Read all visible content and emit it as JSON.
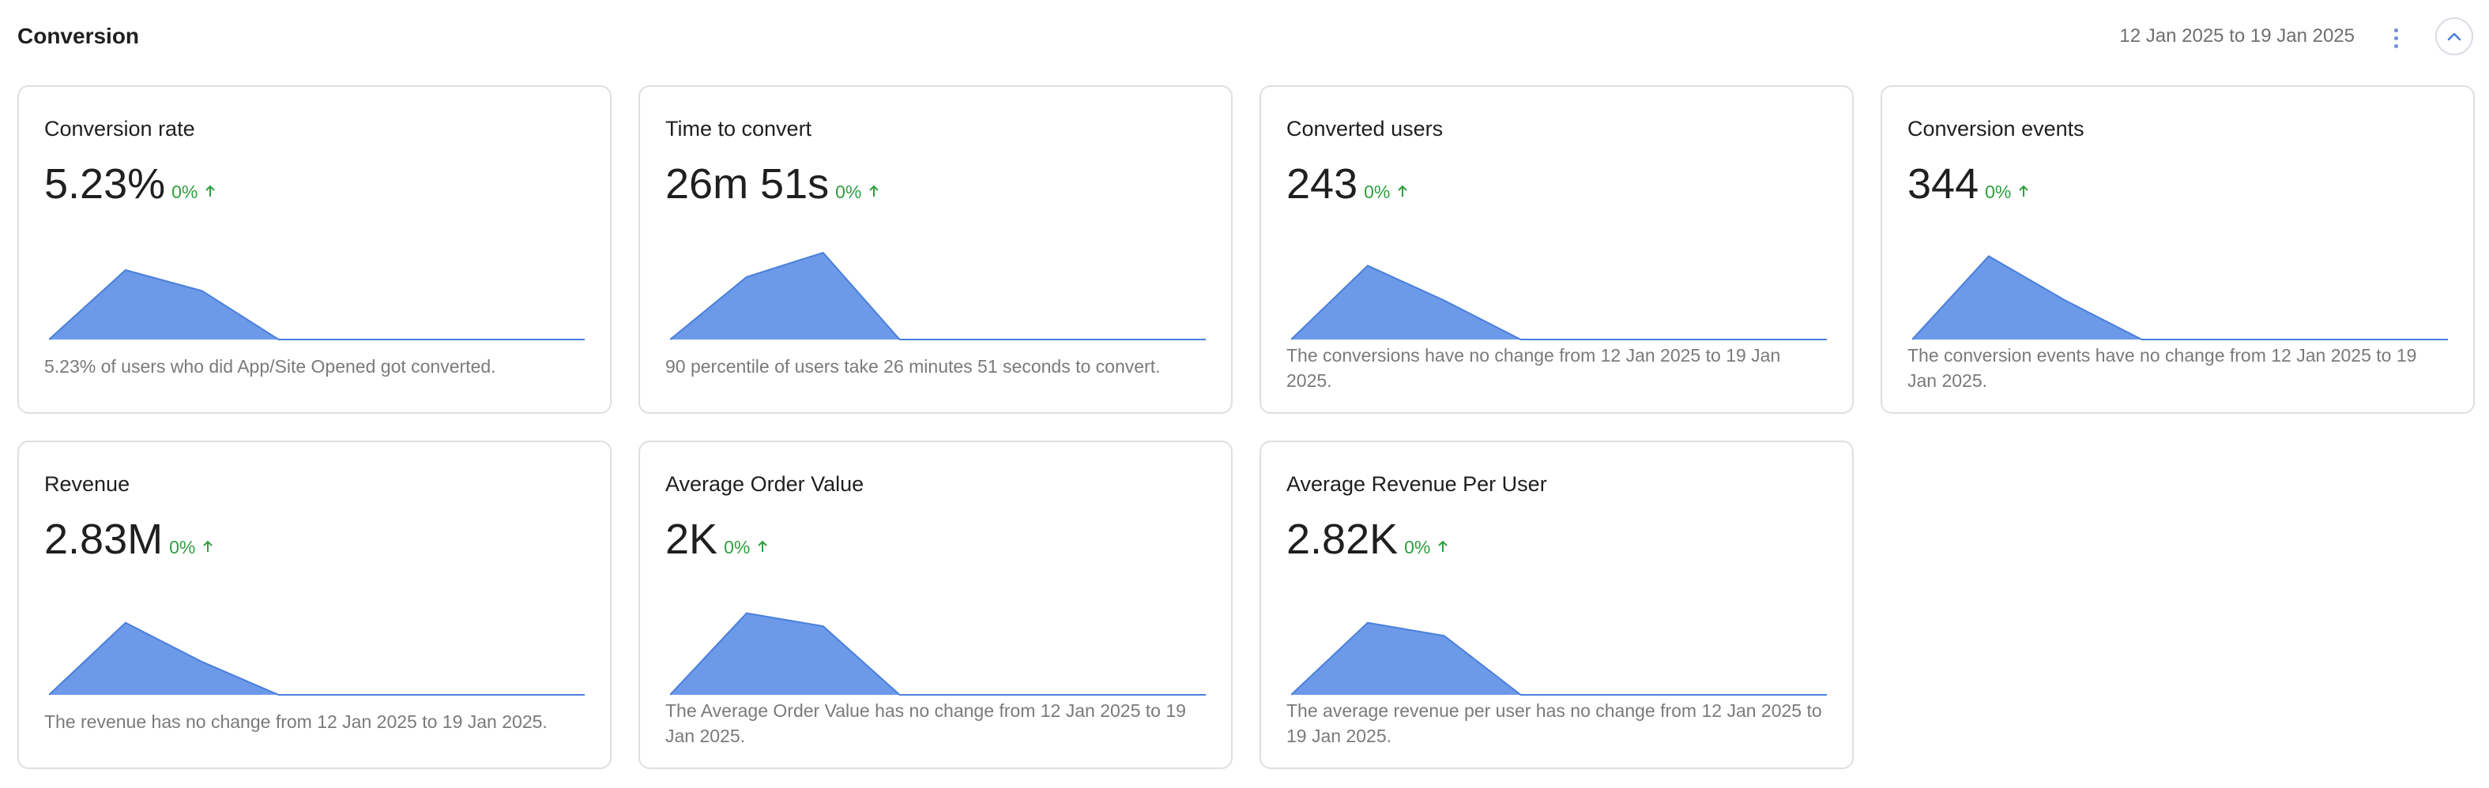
{
  "section": {
    "title": "Conversion",
    "date_range": "12 Jan 2025 to 19 Jan 2025"
  },
  "cards": [
    {
      "title": "Conversion rate",
      "value": "5.23%",
      "change": "0%",
      "direction": "up",
      "description": "5.23% of users who did App/Site Opened got converted.",
      "trend": [
        0,
        0.8,
        0.56,
        0,
        0,
        0,
        0,
        0
      ]
    },
    {
      "title": "Time to convert",
      "value": "26m 51s",
      "change": "0%",
      "direction": "up",
      "description": "90 percentile of users take 26 minutes 51 seconds to convert.",
      "trend": [
        0,
        0.72,
        1,
        0,
        0,
        0,
        0,
        0
      ]
    },
    {
      "title": "Converted users",
      "value": "243",
      "change": "0%",
      "direction": "up",
      "description": "The conversions have no change from 12 Jan 2025 to 19 Jan 2025.",
      "trend": [
        0,
        0.85,
        0.45,
        0,
        0,
        0,
        0,
        0
      ]
    },
    {
      "title": "Conversion events",
      "value": "344",
      "change": "0%",
      "direction": "up",
      "description": "The conversion events have no change from 12 Jan 2025 to 19 Jan 2025.",
      "trend": [
        0,
        0.96,
        0.45,
        0,
        0,
        0,
        0,
        0
      ]
    },
    {
      "title": "Revenue",
      "value": "2.83M",
      "change": "0%",
      "direction": "up",
      "description": "The revenue has no change from 12 Jan 2025 to 19 Jan 2025.",
      "trend": [
        0,
        0.83,
        0.38,
        0,
        0,
        0,
        0,
        0
      ]
    },
    {
      "title": "Average Order Value",
      "value": "2K",
      "change": "0%",
      "direction": "up",
      "description": "The Average Order Value has no change from 12 Jan 2025 to 19 Jan 2025.",
      "trend": [
        0,
        0.94,
        0.79,
        0,
        0,
        0,
        0,
        0
      ]
    },
    {
      "title": "Average Revenue Per User",
      "value": "2.82K",
      "change": "0%",
      "direction": "up",
      "description": "The average revenue per user has no change from 12 Jan 2025 to 19 Jan 2025.",
      "trend": [
        0,
        0.83,
        0.68,
        0,
        0,
        0,
        0,
        0
      ]
    }
  ],
  "colors": {
    "positive": "#2e9e3f",
    "negative": "#d63b3b",
    "chart_fill": "#6c9ae8",
    "chart_line": "#4a7fdb",
    "border": "#dedfe2"
  },
  "icons": {
    "more": "more-vertical-icon",
    "collapse": "chevron-up-icon",
    "change": "arrow-up-icon"
  }
}
